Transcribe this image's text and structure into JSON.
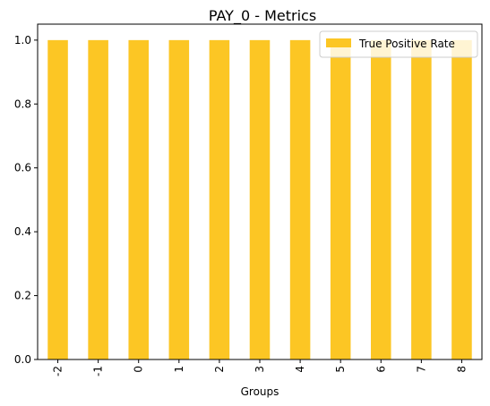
{
  "chart_data": {
    "type": "bar",
    "title": "PAY_0 - Metrics",
    "xlabel": "Groups",
    "ylabel": "",
    "categories": [
      "-2",
      "-1",
      "0",
      "1",
      "2",
      "3",
      "4",
      "5",
      "6",
      "7",
      "8"
    ],
    "series": [
      {
        "name": "True Positive Rate",
        "values": [
          1.0,
          1.0,
          1.0,
          1.0,
          1.0,
          1.0,
          1.0,
          1.0,
          1.0,
          1.0,
          1.0
        ],
        "color": "#fcc624"
      }
    ],
    "ylim": [
      0,
      1.05
    ],
    "yticks": [
      "0.0",
      "0.2",
      "0.4",
      "0.6",
      "0.8",
      "1.0"
    ],
    "grid": false,
    "legend": "top-right"
  }
}
